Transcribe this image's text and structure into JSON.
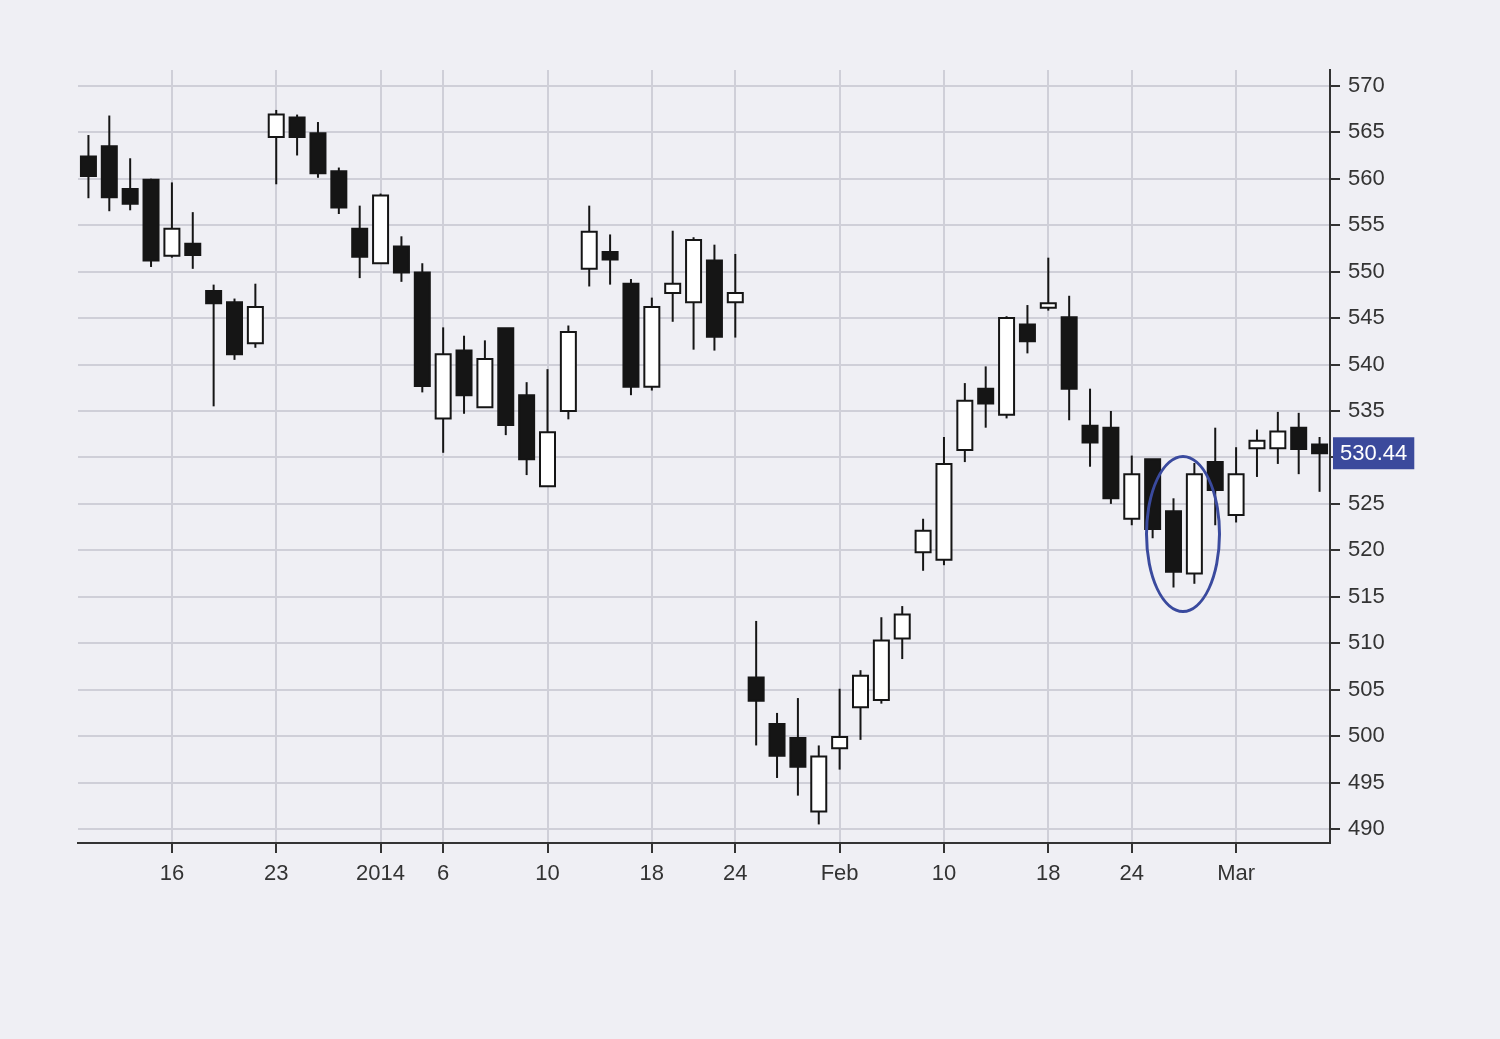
{
  "chart_data": {
    "type": "candlestick",
    "categories": [
      null,
      null,
      null,
      null,
      "16",
      null,
      null,
      null,
      null,
      "23",
      null,
      null,
      null,
      null,
      "2014",
      null,
      null,
      "6",
      null,
      null,
      null,
      null,
      "10",
      null,
      null,
      null,
      null,
      "18",
      null,
      null,
      null,
      "24",
      null,
      null,
      null,
      null,
      "Feb",
      null,
      null,
      null,
      null,
      "10",
      null,
      null,
      null,
      null,
      "18",
      null,
      null,
      null,
      "24",
      null,
      null,
      null,
      null,
      "Mar",
      null,
      null,
      null,
      null
    ],
    "ohlc": [
      [
        562.4,
        564.7,
        557.9,
        560.3
      ],
      [
        563.5,
        566.8,
        556.5,
        558.0
      ],
      [
        558.9,
        562.2,
        556.6,
        557.3
      ],
      [
        559.9,
        560.0,
        550.5,
        551.2
      ],
      [
        551.7,
        559.6,
        551.5,
        554.6
      ],
      [
        553.0,
        556.4,
        550.3,
        551.8
      ],
      [
        547.9,
        548.6,
        535.5,
        546.6
      ],
      [
        546.7,
        547.1,
        540.5,
        541.1
      ],
      [
        542.3,
        548.7,
        541.8,
        546.2
      ],
      [
        564.5,
        567.4,
        559.4,
        566.9
      ],
      [
        566.6,
        566.9,
        562.5,
        564.5
      ],
      [
        564.9,
        566.1,
        560.1,
        560.6
      ],
      [
        560.8,
        561.2,
        556.2,
        556.9
      ],
      [
        554.6,
        557.1,
        549.3,
        551.6
      ],
      [
        550.9,
        558.4,
        550.9,
        558.2
      ],
      [
        552.7,
        553.8,
        548.9,
        549.9
      ],
      [
        549.9,
        550.9,
        537.0,
        537.7
      ],
      [
        534.2,
        544.0,
        530.5,
        541.1
      ],
      [
        541.5,
        543.1,
        534.7,
        536.7
      ],
      [
        535.4,
        542.6,
        535.4,
        540.6
      ],
      [
        543.9,
        543.9,
        532.4,
        533.5
      ],
      [
        536.7,
        538.1,
        528.1,
        529.8
      ],
      [
        526.9,
        539.5,
        526.9,
        532.7
      ],
      [
        535.0,
        544.2,
        534.1,
        543.5
      ],
      [
        550.3,
        557.1,
        548.4,
        554.3
      ],
      [
        552.1,
        554.0,
        548.6,
        551.3
      ],
      [
        548.7,
        549.2,
        536.7,
        537.6
      ],
      [
        537.6,
        547.2,
        537.2,
        546.2
      ],
      [
        547.7,
        554.4,
        544.6,
        548.7
      ],
      [
        546.7,
        553.7,
        541.6,
        553.4
      ],
      [
        551.2,
        552.9,
        541.5,
        543.0
      ],
      [
        546.7,
        551.9,
        542.9,
        547.7
      ],
      [
        506.3,
        512.4,
        499.0,
        503.8
      ],
      [
        501.3,
        502.5,
        495.5,
        497.9
      ],
      [
        499.8,
        504.1,
        493.6,
        496.7
      ],
      [
        491.9,
        499.0,
        490.5,
        497.8
      ],
      [
        498.7,
        505.1,
        496.4,
        499.9
      ],
      [
        503.1,
        507.1,
        499.6,
        506.5
      ],
      [
        503.9,
        512.8,
        503.5,
        510.3
      ],
      [
        510.5,
        514.0,
        508.3,
        513.1
      ],
      [
        519.8,
        523.4,
        517.8,
        522.1
      ],
      [
        519.0,
        532.2,
        518.4,
        529.3
      ],
      [
        530.8,
        538.0,
        529.5,
        536.1
      ],
      [
        537.4,
        539.8,
        533.2,
        535.8
      ],
      [
        534.6,
        545.2,
        534.2,
        545.0
      ],
      [
        544.3,
        546.4,
        541.2,
        542.5
      ],
      [
        546.1,
        551.5,
        545.8,
        546.6
      ],
      [
        545.1,
        547.4,
        534.0,
        537.4
      ],
      [
        533.4,
        537.4,
        529.0,
        531.6
      ],
      [
        533.2,
        535.0,
        525.0,
        525.6
      ],
      [
        523.4,
        530.2,
        522.7,
        528.2
      ],
      [
        529.8,
        529.8,
        521.3,
        522.3
      ],
      [
        524.2,
        525.6,
        516.0,
        517.7
      ],
      [
        517.5,
        529.4,
        516.4,
        528.2
      ],
      [
        529.5,
        533.2,
        522.7,
        526.5
      ],
      [
        523.8,
        531.1,
        523.0,
        528.2
      ],
      [
        531.0,
        533.0,
        527.9,
        531.8
      ],
      [
        531.0,
        534.9,
        529.3,
        532.8
      ],
      [
        533.2,
        534.8,
        528.2,
        530.9
      ],
      [
        531.4,
        532.2,
        526.3,
        530.44
      ]
    ],
    "ylim": [
      488.5,
      571.7
    ],
    "yticks": [
      490,
      495,
      500,
      505,
      510,
      515,
      520,
      525,
      {
        "value": 530,
        "label": null
      },
      535,
      540,
      545,
      550,
      555,
      560,
      565,
      570
    ],
    "grid": true,
    "annotations": [
      "530.44"
    ]
  }
}
